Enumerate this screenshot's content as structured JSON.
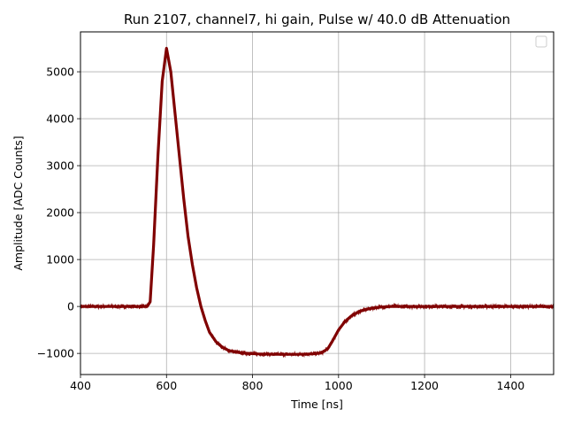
{
  "chart_data": {
    "type": "line",
    "title": "Run 2107, channel7, hi gain, Pulse w/ 40.0 dB Attenuation",
    "xlabel": "Time [ns]",
    "ylabel": "Amplitude [ADC Counts]",
    "xlim": [
      400,
      1500
    ],
    "ylim": [
      -1450,
      5850
    ],
    "xticks": [
      400,
      600,
      800,
      1000,
      1200,
      1400
    ],
    "xtick_labels": [
      "400",
      "600",
      "800",
      "1000",
      "1200",
      "1400"
    ],
    "yticks": [
      -1000,
      0,
      1000,
      2000,
      3000,
      4000,
      5000
    ],
    "ytick_labels": [
      "−1000",
      "0",
      "1000",
      "2000",
      "3000",
      "4000",
      "5000"
    ],
    "grid": true,
    "legend": "top-right (empty)",
    "series": [
      {
        "color": "#800000",
        "x": [
          400,
          450,
          500,
          540,
          555,
          562,
          570,
          580,
          590,
          600,
          610,
          620,
          630,
          640,
          650,
          660,
          670,
          680,
          690,
          700,
          715,
          730,
          745,
          760,
          775,
          790,
          810,
          850,
          900,
          940,
          960,
          975,
          985,
          1000,
          1015,
          1030,
          1050,
          1070,
          1090,
          1120,
          1150,
          1200,
          1300,
          1400,
          1500
        ],
        "y": [
          0,
          0,
          0,
          0,
          0,
          100,
          1300,
          3200,
          4800,
          5500,
          5000,
          4100,
          3200,
          2300,
          1500,
          900,
          400,
          0,
          -300,
          -550,
          -750,
          -870,
          -940,
          -970,
          -990,
          -1000,
          -1010,
          -1020,
          -1020,
          -1010,
          -990,
          -900,
          -750,
          -500,
          -320,
          -200,
          -100,
          -50,
          -20,
          0,
          0,
          0,
          0,
          0,
          0
        ]
      }
    ]
  }
}
